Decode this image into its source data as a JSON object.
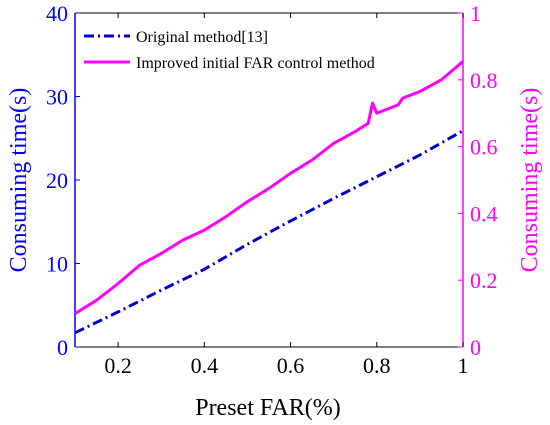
{
  "chart_data": {
    "type": "line",
    "xlabel": "Preset FAR(%)",
    "ylabel_left": "Consuming time(s)",
    "ylabel_right": "Consuming time(s)",
    "xlim": [
      0.1,
      1
    ],
    "ylim_left": [
      0,
      40
    ],
    "ylim_right": [
      0,
      1
    ],
    "x_ticks": [
      "0.2",
      "0.4",
      "0.6",
      "0.8",
      "1"
    ],
    "y_left_ticks": [
      "0",
      "10",
      "20",
      "30",
      "40"
    ],
    "y_right_ticks": [
      "0",
      "0.2",
      "0.4",
      "0.6",
      "0.8",
      "1"
    ],
    "grid": false,
    "legend_position": "top-left",
    "colors": {
      "left_axis": "#0000ff",
      "right_axis": "#ff00ff",
      "series1": "#0000cc",
      "series2": "#ff00ff"
    },
    "series": [
      {
        "name": "Original method[13]",
        "axis": "left",
        "style": "dash-dot",
        "x": [
          0.1,
          0.2,
          0.3,
          0.4,
          0.5,
          0.6,
          0.7,
          0.8,
          0.9,
          1.0
        ],
        "values": [
          1.7,
          4.2,
          6.8,
          9.3,
          12.3,
          15.1,
          17.8,
          20.4,
          23.0,
          25.9
        ]
      },
      {
        "name": "Improved initial FAR control method",
        "axis": "right",
        "style": "solid",
        "x": [
          0.1,
          0.15,
          0.2,
          0.25,
          0.3,
          0.35,
          0.4,
          0.45,
          0.5,
          0.55,
          0.6,
          0.65,
          0.7,
          0.75,
          0.78,
          0.79,
          0.8,
          0.85,
          0.86,
          0.9,
          0.95,
          1.0
        ],
        "values": [
          0.1,
          0.14,
          0.19,
          0.245,
          0.28,
          0.32,
          0.35,
          0.39,
          0.435,
          0.475,
          0.52,
          0.56,
          0.61,
          0.645,
          0.67,
          0.73,
          0.7,
          0.725,
          0.745,
          0.765,
          0.8,
          0.855
        ]
      }
    ]
  }
}
